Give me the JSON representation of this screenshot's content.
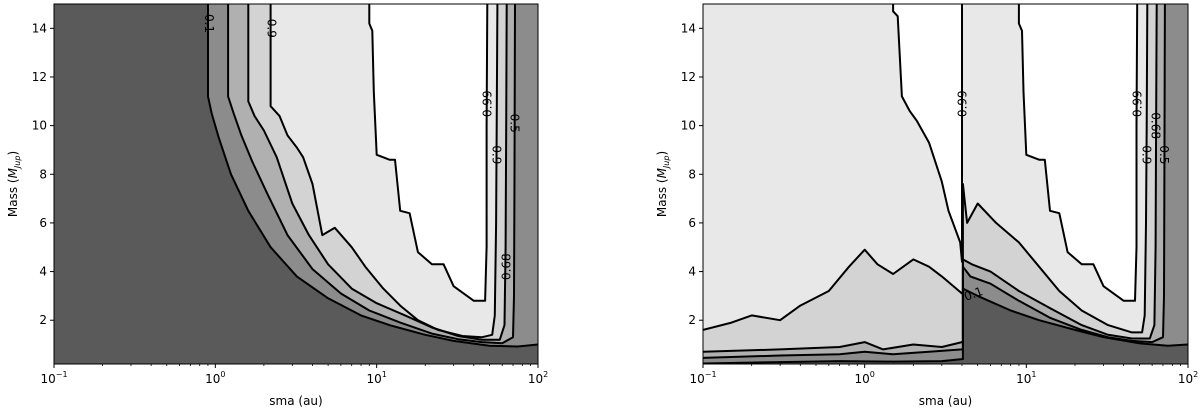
{
  "chart_data": [
    {
      "type": "contour",
      "xlabel": "sma (au)",
      "ylabel_prefix": "Mass (",
      "ylabel_symbol": "M",
      "ylabel_subscript": "Jup",
      "ylabel_suffix": ")",
      "xscale": "log",
      "xlim": [
        0.1,
        100
      ],
      "ylim": [
        0.2,
        15
      ],
      "x_ticks": [
        {
          "value": 0.1,
          "base": "10",
          "exp": "−1"
        },
        {
          "value": 1,
          "base": "10",
          "exp": "0"
        },
        {
          "value": 10,
          "base": "10",
          "exp": "1"
        },
        {
          "value": 100,
          "base": "10",
          "exp": "2"
        }
      ],
      "y_ticks": [
        {
          "value": 2,
          "label": "2"
        },
        {
          "value": 4,
          "label": "4"
        },
        {
          "value": 6,
          "label": "6"
        },
        {
          "value": 8,
          "label": "8"
        },
        {
          "value": 10,
          "label": "10"
        },
        {
          "value": 12,
          "label": "12"
        },
        {
          "value": 14,
          "label": "14"
        }
      ],
      "fill_colors": {
        "below_0.1": "#5a5a5a",
        "0.1-0.5": "#8c8c8c",
        "0.5-0.68": "#b0b0b0",
        "0.68-0.9": "#d3d3d3",
        "0.9-0.99": "#e8e8e8",
        "above_0.99": "#ffffff"
      },
      "contours": [
        {
          "level": "0.1",
          "points": [
            [
              0.9,
              15
            ],
            [
              0.9,
              11.2
            ],
            [
              0.95,
              10.5
            ],
            [
              1.05,
              9.5
            ],
            [
              1.25,
              8.0
            ],
            [
              1.6,
              6.5
            ],
            [
              2.2,
              5.0
            ],
            [
              3.2,
              3.8
            ],
            [
              5,
              2.9
            ],
            [
              8,
              2.2
            ],
            [
              12,
              1.8
            ],
            [
              20,
              1.4
            ],
            [
              30,
              1.15
            ],
            [
              50,
              0.95
            ],
            [
              75,
              0.92
            ],
            [
              100,
              1.0
            ]
          ]
        },
        {
          "level": "0.5",
          "points": [
            [
              1.2,
              15
            ],
            [
              1.2,
              11.2
            ],
            [
              1.3,
              10.5
            ],
            [
              1.45,
              9.6
            ],
            [
              1.7,
              8.5
            ],
            [
              2.1,
              7.2
            ],
            [
              2.8,
              5.5
            ],
            [
              4,
              4.1
            ],
            [
              6,
              3.1
            ],
            [
              9,
              2.4
            ],
            [
              14,
              1.9
            ],
            [
              22,
              1.45
            ],
            [
              32,
              1.22
            ],
            [
              45,
              1.1
            ],
            [
              60,
              1.05
            ],
            [
              70,
              1.3
            ],
            [
              71,
              3
            ],
            [
              71.5,
              8
            ],
            [
              72,
              15
            ]
          ]
        },
        {
          "level": "0.68",
          "points": [
            [
              1.6,
              15
            ],
            [
              1.6,
              11.0
            ],
            [
              1.75,
              10.4
            ],
            [
              2.0,
              9.8
            ],
            [
              2.4,
              8.7
            ],
            [
              3.0,
              6.8
            ],
            [
              3.8,
              5.5
            ],
            [
              5,
              4.3
            ],
            [
              7,
              3.3
            ],
            [
              10,
              2.7
            ],
            [
              15,
              2.2
            ],
            [
              22,
              1.7
            ],
            [
              32,
              1.35
            ],
            [
              45,
              1.2
            ],
            [
              58,
              1.2
            ],
            [
              62,
              1.8
            ],
            [
              63,
              5
            ],
            [
              63.5,
              10
            ],
            [
              64,
              15
            ]
          ]
        },
        {
          "level": "0.9",
          "points": [
            [
              2.2,
              15
            ],
            [
              2.2,
              10.8
            ],
            [
              2.5,
              10.4
            ],
            [
              2.8,
              9.6
            ],
            [
              3.2,
              9.1
            ],
            [
              3.5,
              8.7
            ],
            [
              4.0,
              7.6
            ],
            [
              4.6,
              5.5
            ],
            [
              5.5,
              5.8
            ],
            [
              7,
              5.0
            ],
            [
              8.5,
              4.2
            ],
            [
              11,
              3.3
            ],
            [
              14,
              2.6
            ],
            [
              18,
              2.0
            ],
            [
              24,
              1.6
            ],
            [
              34,
              1.35
            ],
            [
              45,
              1.3
            ],
            [
              52,
              1.4
            ],
            [
              54,
              2.2
            ],
            [
              55,
              6
            ],
            [
              55.5,
              10
            ],
            [
              56,
              15
            ]
          ]
        },
        {
          "level": "0.99",
          "points": [
            [
              9,
              15
            ],
            [
              9,
              14.2
            ],
            [
              9.4,
              13.9
            ],
            [
              9.6,
              11.4
            ],
            [
              10,
              8.8
            ],
            [
              12,
              8.6
            ],
            [
              13,
              8.6
            ],
            [
              14,
              6.5
            ],
            [
              16,
              6.4
            ],
            [
              18,
              4.8
            ],
            [
              22,
              4.3
            ],
            [
              26,
              4.3
            ],
            [
              30,
              3.4
            ],
            [
              40,
              2.8
            ],
            [
              47,
              2.8
            ],
            [
              48,
              5
            ],
            [
              48,
              10
            ],
            [
              48.5,
              15
            ]
          ]
        }
      ],
      "contour_labels": [
        {
          "text": "0.1",
          "x": 0.92,
          "y": 14.2,
          "rotation": 90
        },
        {
          "text": "0.9",
          "x": 2.25,
          "y": 14.0,
          "rotation": 90
        },
        {
          "text": "0.99",
          "x": 48.3,
          "y": 10.9,
          "rotation": -90
        },
        {
          "text": "0.9",
          "x": 55.8,
          "y": 8.8,
          "rotation": 90
        },
        {
          "text": "0.5",
          "x": 71.8,
          "y": 10.1,
          "rotation": 90
        },
        {
          "text": "0.68",
          "x": 63.5,
          "y": 4.2,
          "rotation": -90
        }
      ]
    },
    {
      "type": "contour",
      "xlabel": "sma (au)",
      "ylabel_prefix": "Mass (",
      "ylabel_symbol": "M",
      "ylabel_subscript": "Jup",
      "ylabel_suffix": ")",
      "xscale": "log",
      "xlim": [
        0.1,
        100
      ],
      "ylim": [
        0.2,
        15
      ],
      "x_ticks": [
        {
          "value": 0.1,
          "base": "10",
          "exp": "−1"
        },
        {
          "value": 1,
          "base": "10",
          "exp": "0"
        },
        {
          "value": 10,
          "base": "10",
          "exp": "1"
        },
        {
          "value": 100,
          "base": "10",
          "exp": "2"
        }
      ],
      "y_ticks": [
        {
          "value": 2,
          "label": "2"
        },
        {
          "value": 4,
          "label": "4"
        },
        {
          "value": 6,
          "label": "6"
        },
        {
          "value": 8,
          "label": "8"
        },
        {
          "value": 10,
          "label": "10"
        },
        {
          "value": 12,
          "label": "12"
        },
        {
          "value": 14,
          "label": "14"
        }
      ],
      "fill_colors": {
        "below_0.1": "#5a5a5a",
        "0.1-0.5": "#8c8c8c",
        "0.5-0.68": "#b0b0b0",
        "0.68-0.9": "#d3d3d3",
        "0.9-0.99": "#e8e8e8",
        "above_0.99": "#ffffff"
      },
      "contours": [
        {
          "level": "0.1",
          "points": [
            [
              0.1,
              0.22
            ],
            [
              0.3,
              0.28
            ],
            [
              0.7,
              0.32
            ],
            [
              1.5,
              0.3
            ],
            [
              3,
              0.32
            ],
            [
              4,
              0.4
            ],
            [
              4.05,
              0.4
            ],
            [
              4.05,
              3.3
            ],
            [
              5,
              3.0
            ],
            [
              8,
              2.4
            ],
            [
              12,
              2.0
            ],
            [
              20,
              1.6
            ],
            [
              30,
              1.3
            ],
            [
              50,
              1.05
            ],
            [
              75,
              0.95
            ],
            [
              100,
              1.0
            ]
          ]
        },
        {
          "level": "0.5",
          "points": [
            [
              0.1,
              0.45
            ],
            [
              0.3,
              0.55
            ],
            [
              0.7,
              0.6
            ],
            [
              1.0,
              0.7
            ],
            [
              1.5,
              0.6
            ],
            [
              2.5,
              0.7
            ],
            [
              4,
              0.8
            ],
            [
              4.05,
              0.8
            ],
            [
              4.05,
              4.2
            ],
            [
              4.5,
              3.8
            ],
            [
              6,
              3.5
            ],
            [
              9,
              2.8
            ],
            [
              14,
              2.1
            ],
            [
              22,
              1.6
            ],
            [
              32,
              1.3
            ],
            [
              45,
              1.15
            ],
            [
              60,
              1.1
            ],
            [
              70,
              1.3
            ],
            [
              71,
              3
            ],
            [
              71.5,
              8
            ],
            [
              72,
              15
            ]
          ]
        },
        {
          "level": "0.68",
          "points": [
            [
              0.1,
              0.7
            ],
            [
              0.3,
              0.8
            ],
            [
              0.7,
              0.9
            ],
            [
              1.0,
              1.1
            ],
            [
              1.3,
              0.8
            ],
            [
              2,
              1.0
            ],
            [
              3,
              0.9
            ],
            [
              4,
              1.1
            ],
            [
              4.05,
              1.1
            ],
            [
              4.05,
              4.5
            ],
            [
              4.6,
              4.3
            ],
            [
              6,
              4.0
            ],
            [
              9,
              3.2
            ],
            [
              14,
              2.5
            ],
            [
              22,
              1.8
            ],
            [
              32,
              1.4
            ],
            [
              45,
              1.25
            ],
            [
              58,
              1.25
            ],
            [
              62,
              1.8
            ],
            [
              63,
              5
            ],
            [
              63.5,
              10
            ],
            [
              64,
              15
            ]
          ]
        },
        {
          "level": "0.9",
          "points": [
            [
              0.1,
              1.6
            ],
            [
              0.15,
              1.9
            ],
            [
              0.2,
              2.2
            ],
            [
              0.3,
              2.0
            ],
            [
              0.4,
              2.6
            ],
            [
              0.6,
              3.2
            ],
            [
              0.8,
              4.2
            ],
            [
              1.0,
              4.9
            ],
            [
              1.2,
              4.3
            ],
            [
              1.5,
              3.9
            ],
            [
              2,
              4.5
            ],
            [
              2.5,
              4.2
            ],
            [
              3,
              3.8
            ],
            [
              4,
              3.1
            ],
            [
              4.05,
              3.1
            ],
            [
              4.05,
              7.6
            ],
            [
              4.3,
              6.0
            ],
            [
              5,
              6.8
            ],
            [
              6.5,
              6.0
            ],
            [
              9,
              5.2
            ],
            [
              12,
              4.2
            ],
            [
              16,
              3.2
            ],
            [
              22,
              2.4
            ],
            [
              32,
              1.8
            ],
            [
              45,
              1.5
            ],
            [
              52,
              1.5
            ],
            [
              54,
              2.2
            ],
            [
              55,
              6
            ],
            [
              55.5,
              10
            ],
            [
              56,
              15
            ]
          ]
        },
        {
          "level": "0.99",
          "points": [
            [
              1.5,
              15
            ],
            [
              1.5,
              14.7
            ],
            [
              1.6,
              14.5
            ],
            [
              1.7,
              11.2
            ],
            [
              1.9,
              10.6
            ],
            [
              2.1,
              10.2
            ],
            [
              2.5,
              9.3
            ],
            [
              3,
              7.7
            ],
            [
              3.3,
              6.5
            ],
            [
              3.9,
              5.2
            ],
            [
              4.0,
              4.4
            ],
            [
              4.0,
              15
            ]
          ]
        },
        {
          "level": "0.99",
          "points": [
            [
              9,
              15
            ],
            [
              9,
              14.2
            ],
            [
              9.4,
              13.9
            ],
            [
              9.6,
              11.4
            ],
            [
              10,
              8.8
            ],
            [
              12,
              8.6
            ],
            [
              13,
              8.6
            ],
            [
              14,
              6.5
            ],
            [
              16,
              6.4
            ],
            [
              18,
              4.8
            ],
            [
              22,
              4.3
            ],
            [
              26,
              4.3
            ],
            [
              30,
              3.4
            ],
            [
              40,
              2.8
            ],
            [
              47,
              2.8
            ],
            [
              48,
              5
            ],
            [
              48,
              10
            ],
            [
              48.5,
              15
            ]
          ]
        }
      ],
      "contour_labels": [
        {
          "text": "0.99",
          "x": 4.0,
          "y": 10.9,
          "rotation": -90
        },
        {
          "text": "0.1",
          "x": 4.7,
          "y": 3.1,
          "rotation": -20
        },
        {
          "text": "0.99",
          "x": 48.3,
          "y": 10.9,
          "rotation": -90
        },
        {
          "text": "0.9",
          "x": 55.8,
          "y": 8.8,
          "rotation": 90
        },
        {
          "text": "0.68",
          "x": 63.5,
          "y": 10.0,
          "rotation": 90
        },
        {
          "text": "0.5",
          "x": 71.8,
          "y": 8.8,
          "rotation": 90
        }
      ]
    }
  ]
}
